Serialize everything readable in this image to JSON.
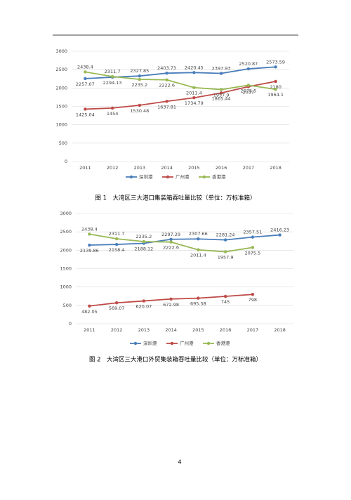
{
  "chart_data": [
    {
      "type": "line",
      "title": "图 1　大湾区三大港口集装箱吞吐量比较（单位：万标准箱）",
      "categories": [
        "2011",
        "2012",
        "2013",
        "2014",
        "2015",
        "2016",
        "2017",
        "2018"
      ],
      "series": [
        {
          "name": "深圳港",
          "color": "#4a7ebb",
          "values": [
            2257.07,
            2294.13,
            2327.85,
            2403.73,
            2420.45,
            2397.93,
            2520.87,
            2573.59
          ]
        },
        {
          "name": "广州港",
          "color": "#be4b48",
          "values": [
            1425.04,
            1454,
            1530.48,
            1637.81,
            1734.79,
            1865.44,
            2037,
            2180
          ]
        },
        {
          "name": "香港港",
          "color": "#98b954",
          "values": [
            2438.4,
            2311.7,
            2235.2,
            2222.6,
            2011.4,
            1957.9,
            2075.5,
            1964.1
          ]
        }
      ],
      "ylim": [
        0,
        3000
      ],
      "yticks": [
        0,
        500,
        1000,
        1500,
        2000,
        2500,
        3000
      ],
      "grid": true,
      "legend": "bottom"
    },
    {
      "type": "line",
      "title": "图 2　大湾区三大港口外贸集装箱吞吐量比较（单位：万标准箱）",
      "categories": [
        "2011",
        "2012",
        "2013",
        "2014",
        "2015",
        "2016",
        "2017",
        "2018"
      ],
      "series": [
        {
          "name": "深圳港",
          "color": "#4a7ebb",
          "values": [
            2139.86,
            2158.4,
            2188.12,
            2297.29,
            2307.66,
            2281.24,
            2357.51,
            2416.23
          ]
        },
        {
          "name": "广州港",
          "color": "#be4b48",
          "values": [
            482.05,
            569.07,
            620.07,
            672.98,
            695.58,
            745,
            798,
            null
          ]
        },
        {
          "name": "香港港",
          "color": "#98b954",
          "values": [
            2438.4,
            2311.7,
            2235.2,
            2222.6,
            2011.4,
            1957.9,
            2075.5,
            null
          ]
        }
      ],
      "ylim": [
        0,
        3000
      ],
      "yticks": [
        0,
        500,
        1000,
        1500,
        2000,
        2500,
        3000
      ],
      "grid": true,
      "legend": "bottom"
    }
  ],
  "page_number": "4"
}
